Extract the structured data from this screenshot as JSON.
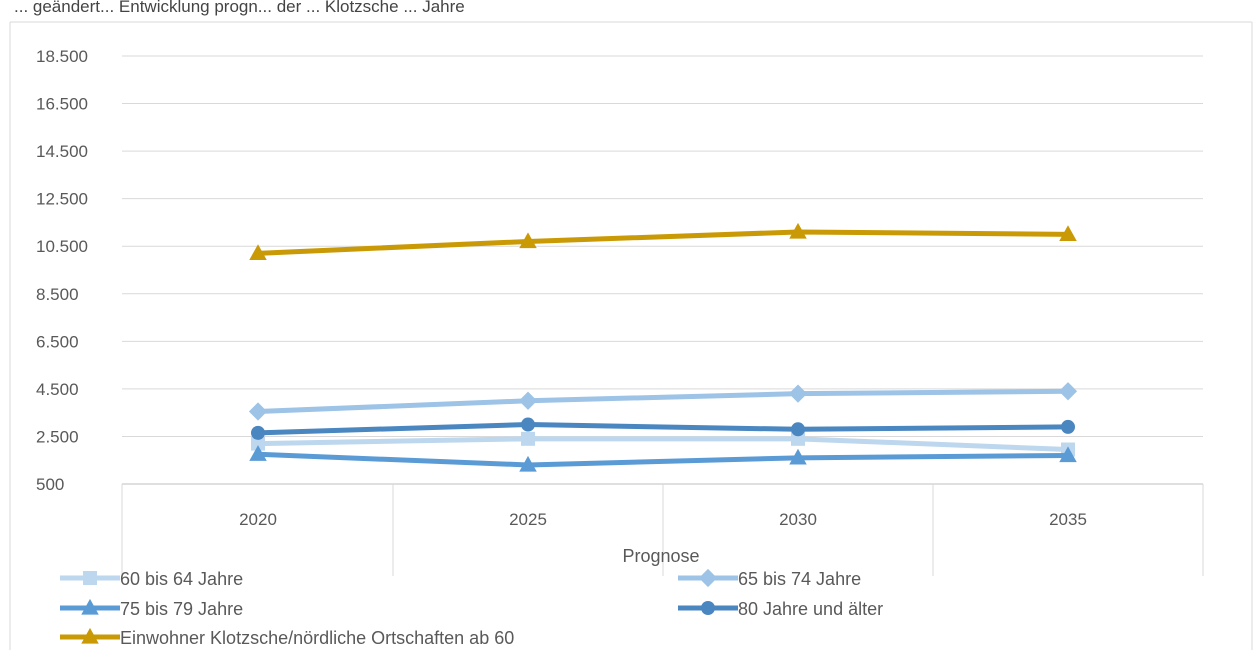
{
  "header_text": "... geändert... Entwicklung progn... der ... Klotzsche ... Jahre",
  "chart_data": {
    "type": "line",
    "x": [
      "2020",
      "2025",
      "2030",
      "2035"
    ],
    "xlabel": "Prognose",
    "ylabel": "",
    "ylim": [
      500,
      19500
    ],
    "yticks": [
      500,
      2500,
      4500,
      6500,
      8500,
      10500,
      12500,
      14500,
      16500,
      18500
    ],
    "ytick_labels": [
      "500",
      "2.500",
      "4.500",
      "6.500",
      "8.500",
      "10.500",
      "12.500",
      "14.500",
      "16.500",
      "18.500"
    ],
    "grid": true,
    "legend_position": "bottom",
    "series": [
      {
        "name": "60 bis 64 Jahre",
        "values": [
          2200,
          2400,
          2400,
          1950
        ],
        "color": "#bdd7ee",
        "marker": "square"
      },
      {
        "name": "65 bis 74 Jahre",
        "values": [
          3550,
          4000,
          4300,
          4400
        ],
        "color": "#9dc3e6",
        "marker": "diamond"
      },
      {
        "name": "75 bis 79 Jahre",
        "values": [
          1750,
          1300,
          1600,
          1700
        ],
        "color": "#5b9bd5",
        "marker": "triangle"
      },
      {
        "name": "80 Jahre und älter",
        "values": [
          2650,
          3000,
          2800,
          2900
        ],
        "color": "#4a86c0",
        "marker": "circle"
      },
      {
        "name": "Einwohner Klotzsche/nördliche Ortschaften ab 60",
        "values": [
          10200,
          10700,
          11100,
          11000
        ],
        "color": "#c99a06",
        "marker": "triangle"
      }
    ]
  }
}
